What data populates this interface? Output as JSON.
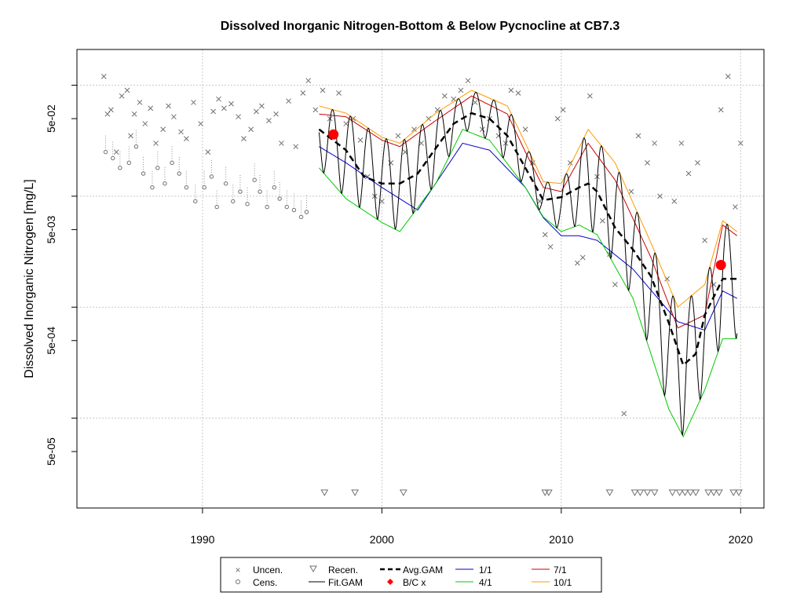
{
  "chart_data": {
    "type": "scatter",
    "title": "Dissolved Inorganic Nitrogen-Bottom & Below Pycnocline at CB7.3",
    "xlabel": "",
    "ylabel": "Dissolved Inorganic Nitrogen [mg/L]",
    "y_scale": "log",
    "xlim": [
      1983.0,
      2021.3
    ],
    "ylim": [
      1.55e-05,
      0.21
    ],
    "x_ticks": [
      1990,
      2000,
      2010,
      2020
    ],
    "x_tick_labels": [
      "1990",
      "2000",
      "2010",
      "2020"
    ],
    "y_ticks": [
      5e-05,
      0.0005,
      0.005,
      0.05
    ],
    "y_tick_labels": [
      "5e-05",
      "5e-04",
      "5e-03",
      "5e-02"
    ],
    "y_minor_gridlines": [
      0.0001,
      0.001,
      0.01,
      0.1
    ],
    "grid": true,
    "legend_position": "bottom",
    "legend": {
      "uncen": "Uncen.",
      "cens": "Cens.",
      "recen": "Recen.",
      "fit_gam": "Fit.GAM",
      "avg_gam": "Avg.GAM",
      "bc": "B/C x",
      "s1": "1/1",
      "s4": "4/1",
      "s7": "7/1",
      "s10": "10/1"
    },
    "colors": {
      "avg_gam": "#000000",
      "fit_gam": "#000000",
      "bc": "#ff0000",
      "s1": "#0000cc",
      "s4": "#00cc00",
      "s7": "#cc0000",
      "s10": "#ff9900",
      "points": "#707070"
    },
    "seasonal_series": [
      {
        "name": "1/1",
        "x": [
          1996.5,
          1998,
          2000,
          2002,
          2004.5,
          2006,
          2008,
          2009,
          2010,
          2011,
          2012,
          2014,
          2016.5,
          2018,
          2019,
          2019.8
        ],
        "y": [
          0.028,
          0.02,
          0.012,
          0.0075,
          0.03,
          0.026,
          0.012,
          0.0064,
          0.0044,
          0.0044,
          0.004,
          0.0022,
          0.00074,
          0.00062,
          0.0014,
          0.0012
        ]
      },
      {
        "name": "4/1",
        "x": [
          1996.5,
          1998,
          2000,
          2001,
          2003,
          2004.5,
          2006,
          2008,
          2009,
          2010,
          2011,
          2012,
          2014,
          2016,
          2016.8,
          2018,
          2019,
          2019.8
        ],
        "y": [
          0.018,
          0.0095,
          0.0058,
          0.0048,
          0.013,
          0.04,
          0.032,
          0.012,
          0.0065,
          0.0048,
          0.0055,
          0.0045,
          0.0012,
          0.00012,
          6.8e-05,
          0.00018,
          0.00052,
          0.00052
        ]
      },
      {
        "name": "7/1",
        "x": [
          1996.5,
          1998,
          2000,
          2001,
          2003,
          2005,
          2007,
          2008,
          2009,
          2010,
          2011.5,
          2013,
          2015,
          2016.5,
          2018,
          2019,
          2019.8
        ],
        "y": [
          0.055,
          0.052,
          0.032,
          0.028,
          0.048,
          0.08,
          0.055,
          0.025,
          0.012,
          0.011,
          0.03,
          0.014,
          0.0028,
          0.00065,
          0.00085,
          0.0055,
          0.0044
        ]
      },
      {
        "name": "10/1",
        "x": [
          1996.5,
          1998,
          2000,
          2001,
          2003,
          2005,
          2007,
          2008,
          2009,
          2010,
          2011.5,
          2013,
          2015,
          2016.5,
          2018,
          2019,
          2019.8
        ],
        "y": [
          0.065,
          0.056,
          0.034,
          0.03,
          0.056,
          0.09,
          0.065,
          0.03,
          0.0135,
          0.013,
          0.04,
          0.02,
          0.0038,
          0.001,
          0.0016,
          0.006,
          0.0048
        ]
      }
    ],
    "avg_gam": {
      "name": "Avg.GAM",
      "x": [
        1996.5,
        1998,
        1999,
        2000,
        2001,
        2002,
        2003,
        2004,
        2005,
        2006,
        2007,
        2008,
        2009,
        2010,
        2011,
        2011.5,
        2012,
        2013,
        2014,
        2015,
        2016,
        2016.8,
        2017.5,
        2018,
        2019,
        2019.8
      ],
      "y": [
        0.04,
        0.026,
        0.015,
        0.013,
        0.013,
        0.016,
        0.027,
        0.045,
        0.056,
        0.05,
        0.035,
        0.018,
        0.0092,
        0.0098,
        0.012,
        0.013,
        0.011,
        0.0052,
        0.0033,
        0.0019,
        0.00072,
        0.0003,
        0.00038,
        0.00085,
        0.0018,
        0.0018
      ]
    },
    "fit_gam_range": [
      1996.5,
      2019.8
    ],
    "bc_points": [
      {
        "x": 1997.3,
        "y": 0.036
      },
      {
        "x": 2018.9,
        "y": 0.0024
      }
    ],
    "uncensored_points": [
      [
        1984.5,
        0.12
      ],
      [
        1984.7,
        0.055
      ],
      [
        1984.9,
        0.06
      ],
      [
        1985.2,
        0.025
      ],
      [
        1985.5,
        0.08
      ],
      [
        1985.8,
        0.09
      ],
      [
        1986.0,
        0.035
      ],
      [
        1986.2,
        0.055
      ],
      [
        1986.5,
        0.07
      ],
      [
        1986.8,
        0.045
      ],
      [
        1987.1,
        0.062
      ],
      [
        1987.4,
        0.03
      ],
      [
        1987.8,
        0.04
      ],
      [
        1988.1,
        0.065
      ],
      [
        1988.4,
        0.052
      ],
      [
        1988.8,
        0.038
      ],
      [
        1989.1,
        0.033
      ],
      [
        1989.5,
        0.07
      ],
      [
        1989.9,
        0.045
      ],
      [
        1990.3,
        0.025
      ],
      [
        1990.6,
        0.058
      ],
      [
        1990.9,
        0.075
      ],
      [
        1991.2,
        0.062
      ],
      [
        1991.6,
        0.068
      ],
      [
        1992.0,
        0.052
      ],
      [
        1992.3,
        0.033
      ],
      [
        1992.7,
        0.04
      ],
      [
        1993.0,
        0.058
      ],
      [
        1993.3,
        0.065
      ],
      [
        1993.7,
        0.048
      ],
      [
        1994.1,
        0.055
      ],
      [
        1994.4,
        0.03
      ],
      [
        1994.8,
        0.072
      ],
      [
        1995.2,
        0.028
      ],
      [
        1995.6,
        0.085
      ],
      [
        1995.9,
        0.11
      ],
      [
        1996.3,
        0.06
      ],
      [
        1996.7,
        0.09
      ],
      [
        1997.1,
        0.05
      ],
      [
        1997.6,
        0.085
      ],
      [
        1998.0,
        0.045
      ],
      [
        1998.4,
        0.05
      ],
      [
        1998.8,
        0.032
      ],
      [
        1999.2,
        0.015
      ],
      [
        1999.6,
        0.01
      ],
      [
        2000.0,
        0.009
      ],
      [
        2000.5,
        0.02
      ],
      [
        2000.9,
        0.035
      ],
      [
        2001.3,
        0.025
      ],
      [
        2001.8,
        0.04
      ],
      [
        2002.2,
        0.03
      ],
      [
        2002.6,
        0.05
      ],
      [
        2003.1,
        0.06
      ],
      [
        2003.5,
        0.08
      ],
      [
        2004.0,
        0.075
      ],
      [
        2004.4,
        0.09
      ],
      [
        2004.8,
        0.11
      ],
      [
        2005.2,
        0.07
      ],
      [
        2005.6,
        0.04
      ],
      [
        2006.0,
        0.05
      ],
      [
        2006.5,
        0.035
      ],
      [
        2006.9,
        0.03
      ],
      [
        2007.2,
        0.09
      ],
      [
        2007.6,
        0.085
      ],
      [
        2008.0,
        0.04
      ],
      [
        2008.4,
        0.02
      ],
      [
        2008.8,
        0.009
      ],
      [
        2009.1,
        0.0045
      ],
      [
        2009.4,
        0.0035
      ],
      [
        2009.8,
        0.05
      ],
      [
        2010.1,
        0.06
      ],
      [
        2010.5,
        0.02
      ],
      [
        2010.9,
        0.0025
      ],
      [
        2011.2,
        0.0028
      ],
      [
        2011.6,
        0.08
      ],
      [
        2012.0,
        0.015
      ],
      [
        2012.3,
        0.006
      ],
      [
        2012.7,
        0.003
      ],
      [
        2013.0,
        0.0016
      ],
      [
        2013.5,
        0.00011
      ],
      [
        2013.9,
        0.011
      ],
      [
        2014.3,
        0.035
      ],
      [
        2014.8,
        0.02
      ],
      [
        2015.2,
        0.03
      ],
      [
        2015.5,
        0.01
      ],
      [
        2015.9,
        0.0018
      ],
      [
        2016.3,
        0.009
      ],
      [
        2016.7,
        0.03
      ],
      [
        2017.1,
        0.016
      ],
      [
        2017.6,
        0.02
      ],
      [
        2018.0,
        0.004
      ],
      [
        2018.5,
        0.0016
      ],
      [
        2018.9,
        0.06
      ],
      [
        2019.3,
        0.12
      ],
      [
        2019.7,
        0.008
      ],
      [
        2020.0,
        0.03
      ]
    ],
    "censored_points": [
      [
        1984.6,
        0.025
      ],
      [
        1985.0,
        0.022
      ],
      [
        1985.4,
        0.018
      ],
      [
        1985.9,
        0.02
      ],
      [
        1986.3,
        0.028
      ],
      [
        1986.7,
        0.016
      ],
      [
        1987.2,
        0.012
      ],
      [
        1987.5,
        0.018
      ],
      [
        1987.9,
        0.013
      ],
      [
        1988.3,
        0.02
      ],
      [
        1988.7,
        0.016
      ],
      [
        1989.1,
        0.012
      ],
      [
        1989.6,
        0.009
      ],
      [
        1990.1,
        0.012
      ],
      [
        1990.5,
        0.015
      ],
      [
        1990.8,
        0.008
      ],
      [
        1991.3,
        0.013
      ],
      [
        1991.7,
        0.009
      ],
      [
        1992.1,
        0.011
      ],
      [
        1992.5,
        0.0085
      ],
      [
        1992.9,
        0.014
      ],
      [
        1993.2,
        0.011
      ],
      [
        1993.6,
        0.008
      ],
      [
        1994.0,
        0.012
      ],
      [
        1994.3,
        0.0095
      ],
      [
        1994.7,
        0.008
      ],
      [
        1995.1,
        0.0075
      ],
      [
        1995.5,
        0.0065
      ],
      [
        1995.8,
        0.0072
      ]
    ],
    "recensored_x": [
      1996.8,
      1998.5,
      2001.2,
      2009.1,
      2009.3,
      2012.7,
      2014.1,
      2014.4,
      2014.8,
      2015.2,
      2016.2,
      2016.6,
      2016.9,
      2017.2,
      2017.5,
      2018.2,
      2018.5,
      2018.8,
      2019.6,
      2019.9
    ]
  }
}
